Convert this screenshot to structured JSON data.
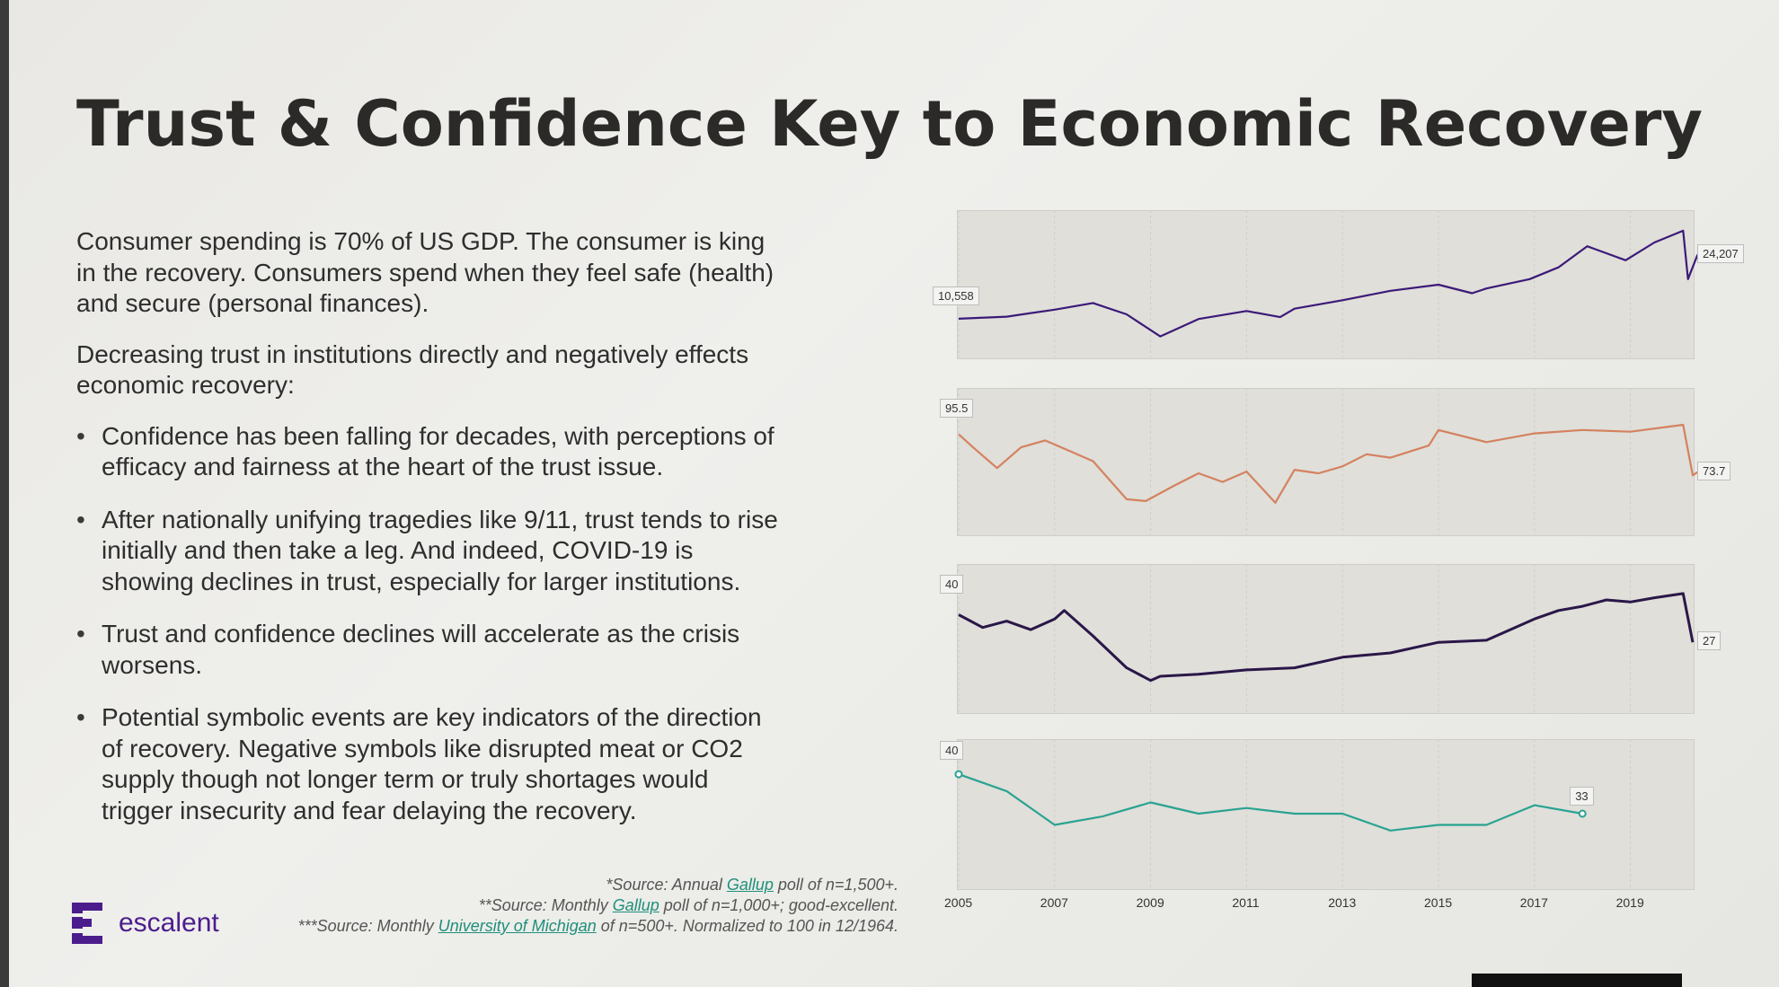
{
  "title": "Trust & Confidence Key to Economic Recovery",
  "body": {
    "paragraphs": [
      "Consumer spending is 70% of US GDP. The consumer is king in the recovery. Consumers spend when they feel safe (health) and secure (personal finances).",
      "Decreasing trust in institutions directly and negatively effects economic recovery:"
    ],
    "bullets": [
      "Confidence has been falling for decades, with perceptions of efficacy and fairness at the heart of the trust issue.",
      "After nationally unifying tragedies like 9/11, trust tends to rise initially and then take a leg. And indeed, COVID-19 is showing declines in trust, especially for larger institutions.",
      "Trust and confidence declines will accelerate as the crisis worsens.",
      "Potential symbolic events are key indicators of the direction of recovery. Negative symbols like disrupted meat or CO2 supply though not longer term or truly shortages would trigger insecurity and fear delaying the recovery."
    ]
  },
  "sources": [
    {
      "pre": "*Source: Annual ",
      "link": "Gallup",
      "post": " poll of n=1,500+."
    },
    {
      "pre": "**Source: Monthly ",
      "link": "Gallup",
      "post": " poll of n=1,000+; good-excellent."
    },
    {
      "pre": "***Source: Monthly ",
      "link": "University of Michigan",
      "post": " of n=500+. Normalized to 100 in 12/1964."
    }
  ],
  "logo": {
    "text": "escalent",
    "color": "#4b1d8c"
  },
  "chart_data": [
    {
      "type": "line",
      "color": "#3b1a78",
      "start_label": "10,558",
      "end_label": "24,207",
      "ylim": [
        5000,
        31000
      ],
      "x": [
        2005,
        2006,
        2007,
        2007.8,
        2008.5,
        2009.2,
        2010,
        2011,
        2011.7,
        2012,
        2013,
        2014,
        2015,
        2015.7,
        2016,
        2016.9,
        2017.5,
        2018.1,
        2018.9,
        2019.5,
        2020.1,
        2020.2,
        2020.4
      ],
      "y": [
        10558,
        11000,
        12500,
        13900,
        11500,
        6800,
        10500,
        12200,
        10900,
        12700,
        14500,
        16500,
        17800,
        16000,
        17000,
        19000,
        21500,
        26000,
        23000,
        26800,
        29300,
        19000,
        24207
      ]
    },
    {
      "type": "line",
      "color": "#d4825f",
      "start_label": "95.5",
      "end_label": "73.7",
      "ylim": [
        45,
        115
      ],
      "x": [
        2005,
        2005.3,
        2005.8,
        2006.3,
        2006.8,
        2007.3,
        2007.8,
        2008.5,
        2008.9,
        2009.5,
        2010,
        2010.5,
        2011,
        2011.6,
        2012,
        2012.5,
        2013,
        2013.5,
        2014,
        2014.8,
        2015,
        2016,
        2017,
        2018,
        2019,
        2020.1,
        2020.3,
        2020.4
      ],
      "y": [
        95.5,
        88,
        76,
        88,
        92,
        86,
        80,
        58,
        57,
        66,
        73,
        68,
        74,
        56,
        75,
        73,
        77,
        84,
        82,
        89,
        98,
        91,
        96,
        98,
        97,
        101,
        71.8,
        73.7
      ]
    },
    {
      "type": "line",
      "color": "#2a1748",
      "start_label": "40",
      "end_label": "27",
      "ylim": [
        0,
        58
      ],
      "x": [
        2005,
        2005.5,
        2006,
        2006.5,
        2007,
        2007.2,
        2007.8,
        2008.5,
        2009,
        2009.2,
        2010,
        2011,
        2012,
        2013,
        2014,
        2015,
        2016,
        2017,
        2017.5,
        2018,
        2018.5,
        2019,
        2019.5,
        2020.1,
        2020.3
      ],
      "y": [
        40,
        34,
        37,
        33,
        38,
        42,
        30,
        15,
        9,
        11,
        12,
        14,
        15,
        20,
        22,
        27,
        28,
        38,
        42,
        44,
        47,
        46,
        48,
        50,
        27
      ]
    },
    {
      "type": "line",
      "color": "#2aa391",
      "start_label": "40",
      "end_label": "33",
      "ylim": [
        22,
        44
      ],
      "x": [
        2005,
        2006,
        2007,
        2008,
        2009,
        2010,
        2011,
        2012,
        2013,
        2014,
        2015,
        2016,
        2017,
        2018
      ],
      "y": [
        40,
        37,
        31,
        32.5,
        35,
        33,
        34,
        33,
        33,
        30,
        31,
        31,
        34.5,
        33
      ]
    }
  ],
  "x_axis": {
    "ticks": [
      "2005",
      "2007",
      "2009",
      "2011",
      "2013",
      "2015",
      "2017",
      "2019"
    ],
    "range": [
      2005,
      2020.5
    ]
  }
}
